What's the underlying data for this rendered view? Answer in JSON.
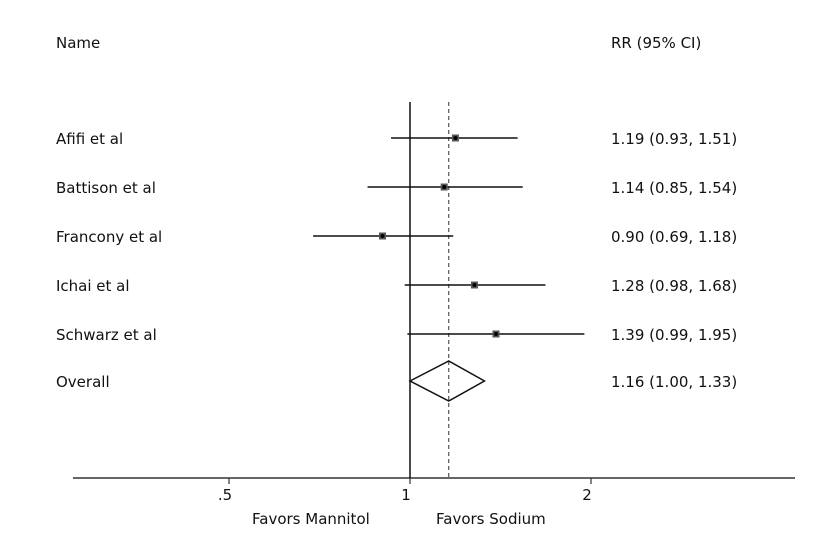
{
  "chart_data": {
    "type": "forest",
    "header_left": "Name",
    "header_right": "RR (95% CI)",
    "scale": "log",
    "xlim": [
      0.38,
      3.0
    ],
    "xticks": [
      {
        "value": 0.5,
        "label": ".5"
      },
      {
        "value": 1,
        "label": "1"
      },
      {
        "value": 2,
        "label": "2"
      }
    ],
    "reference_line": 1,
    "overall_line": 1.16,
    "label_left": "Favors Mannitol",
    "label_right": "Favors Sodium",
    "studies": [
      {
        "name": "Afifi et al",
        "rr": 1.19,
        "lo": 0.93,
        "hi": 1.51,
        "text": "1.19 (0.93, 1.51)"
      },
      {
        "name": "Battison et al",
        "rr": 1.14,
        "lo": 0.85,
        "hi": 1.54,
        "text": "1.14 (0.85, 1.54)"
      },
      {
        "name": "Francony et al",
        "rr": 0.9,
        "lo": 0.69,
        "hi": 1.18,
        "text": "0.90 (0.69, 1.18)"
      },
      {
        "name": "Ichai et al",
        "rr": 1.28,
        "lo": 0.98,
        "hi": 1.68,
        "text": "1.28 (0.98, 1.68)"
      },
      {
        "name": "Schwarz et al",
        "rr": 1.39,
        "lo": 0.99,
        "hi": 1.95,
        "text": "1.39 (0.99, 1.95)"
      }
    ],
    "overall": {
      "name": "Overall",
      "rr": 1.16,
      "lo": 1.0,
      "hi": 1.33,
      "text": "1.16 (1.00, 1.33)"
    }
  }
}
